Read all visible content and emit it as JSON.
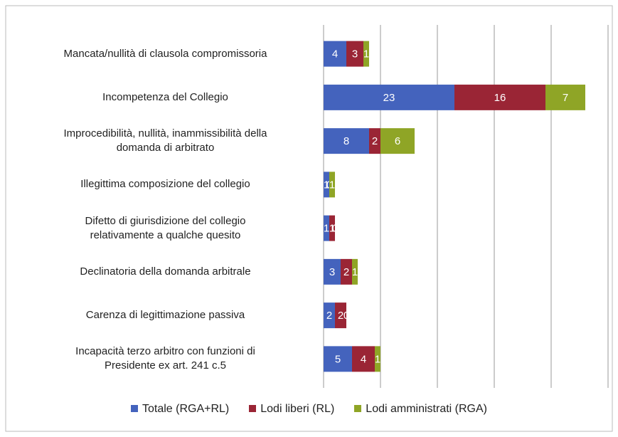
{
  "chart_data": {
    "type": "stacked-bar-horizontal",
    "categories": [
      "Mancata/nullità di clausola compromissoria",
      "Incompetenza del Collegio",
      "Improcedibilità, nullità, inammissibilità della\ndomanda di arbitrato",
      "Illegittima composizione del collegio",
      "Difetto di giurisdizione del collegio\nrelativamente a qualche quesito",
      "Declinatoria della domanda arbitrale",
      "Carenza di legittimazione passiva",
      "Incapacità terzo arbitro con funzioni di\nPresidente ex art. 241 c.5"
    ],
    "series": [
      {
        "name": "Totale (RGA+RL)",
        "color": "#4463bd",
        "values": [
          4,
          23,
          8,
          1,
          1,
          3,
          2,
          5
        ]
      },
      {
        "name": "Lodi liberi (RL)",
        "color": "#9a2535",
        "values": [
          3,
          16,
          2,
          0,
          1,
          2,
          2,
          4
        ]
      },
      {
        "name": "Lodi amministrati (RGA)",
        "color": "#8fa526",
        "values": [
          1,
          7,
          6,
          1,
          0,
          1,
          0,
          1
        ]
      }
    ],
    "xlim": [
      0,
      50
    ],
    "xticks": [
      0,
      10,
      20,
      30,
      40,
      50
    ],
    "grid": true,
    "legend": "bottom"
  }
}
